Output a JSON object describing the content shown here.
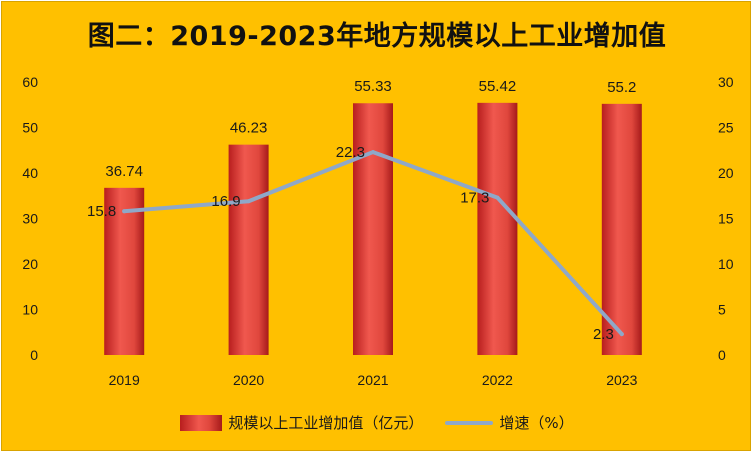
{
  "title": "图二：2019-2023年地方规模以上工业增加值",
  "chart_data": {
    "type": "bar",
    "title": "图二：2019-2023年地方规模以上工业增加值",
    "categories": [
      "2019",
      "2020",
      "2021",
      "2022",
      "2023"
    ],
    "series": [
      {
        "name": "规模以上工业增加值（亿元）",
        "type": "bar",
        "axis": "left",
        "color": "#e8473d",
        "values": [
          36.74,
          46.23,
          55.33,
          55.42,
          55.2
        ],
        "labels": [
          "36.74",
          "46.23",
          "55.33",
          "55.42",
          "55.2"
        ]
      },
      {
        "name": "增速（%）",
        "type": "line",
        "axis": "right",
        "color": "#8fa8c8",
        "values": [
          15.8,
          16.9,
          22.3,
          17.3,
          2.3
        ],
        "labels": [
          "15.8",
          "16.9",
          "22.3",
          "17.3",
          "2.3"
        ]
      }
    ],
    "y_left": {
      "min": 0,
      "max": 60,
      "ticks": [
        "0",
        "10",
        "20",
        "30",
        "40",
        "50",
        "60"
      ]
    },
    "y_right": {
      "min": 0,
      "max": 30,
      "ticks": [
        "0",
        "5",
        "10",
        "15",
        "20",
        "25",
        "30"
      ]
    },
    "grid": false,
    "legend": "bottom",
    "background": "#ffc000"
  }
}
